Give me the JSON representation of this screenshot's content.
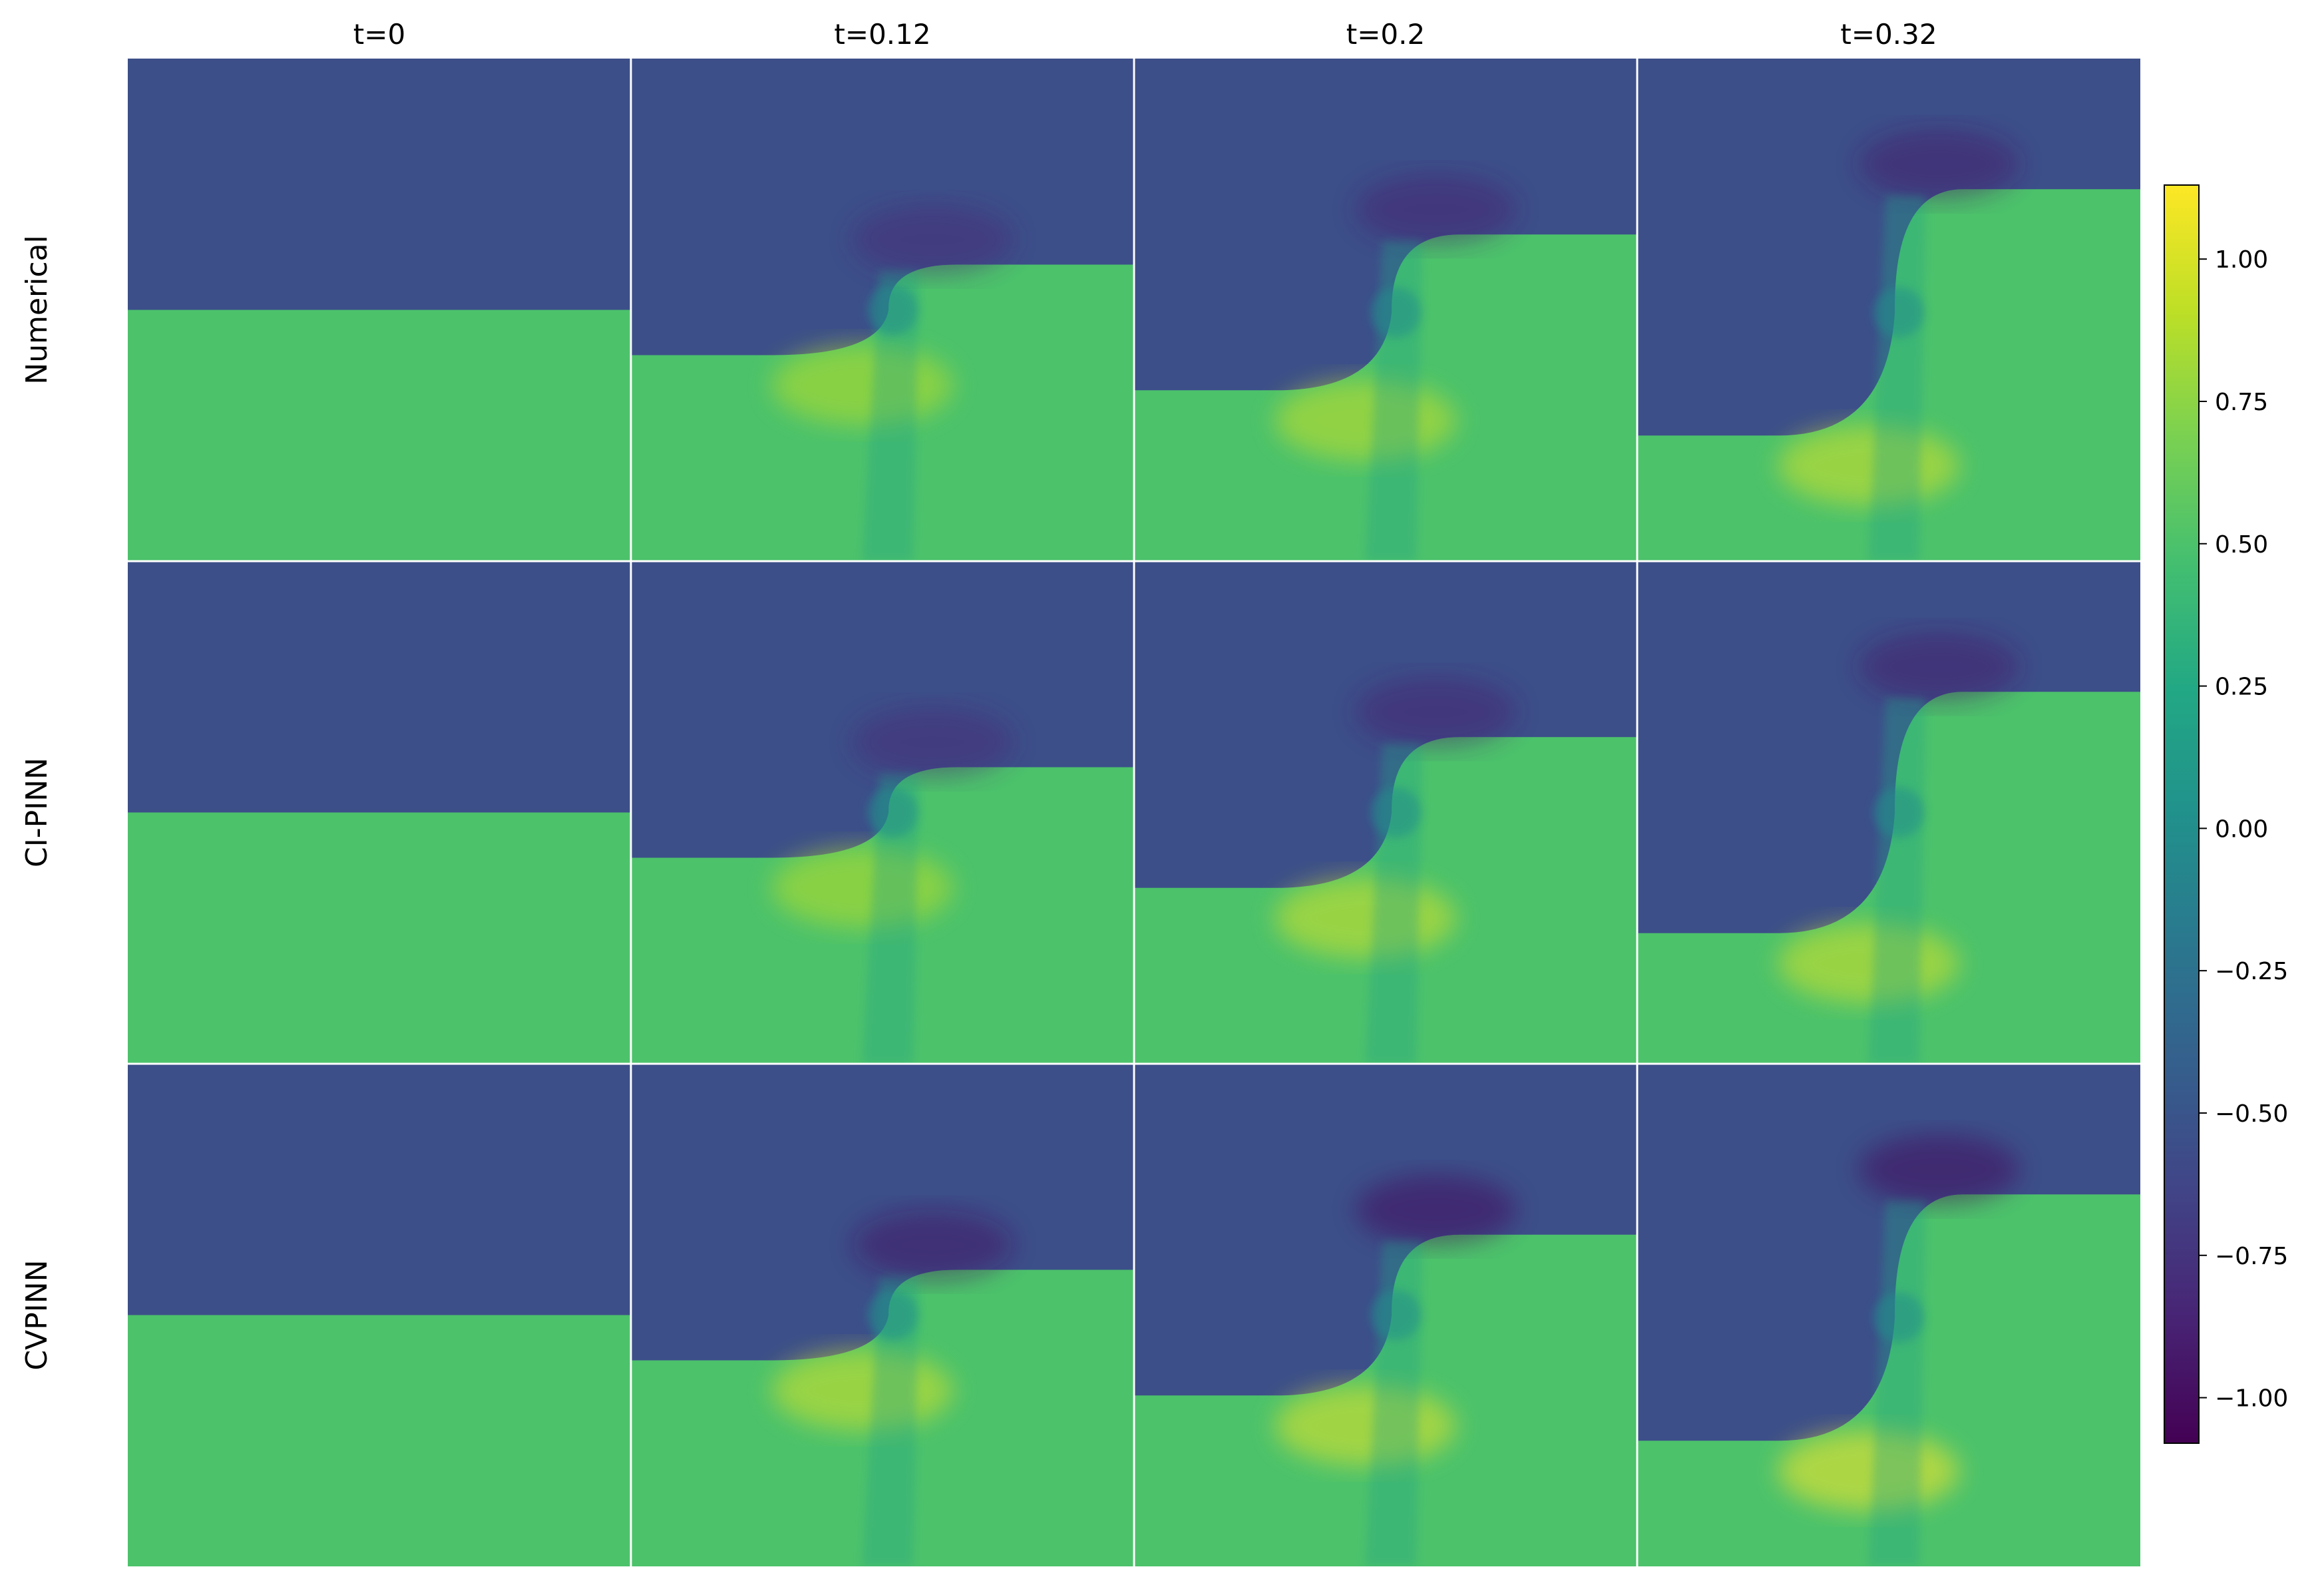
{
  "chart_data": {
    "type": "heatmap",
    "title": "",
    "columns": [
      "t=0",
      "t=0.12",
      "t=0.2",
      "t=0.32"
    ],
    "rows": [
      "Numerical",
      "CI-PINN",
      "CVPINN"
    ],
    "x_ticks_shown": false,
    "y_ticks_shown": false,
    "colormap": "viridis",
    "colorbar": {
      "vmin": -1.08,
      "vmax": 1.13,
      "ticks": [
        -1.0,
        -0.75,
        -0.5,
        -0.25,
        0.0,
        0.25,
        0.5,
        0.75,
        1.0
      ],
      "tick_labels": [
        "−1.00",
        "−0.75",
        "−0.50",
        "−0.25",
        "0.00",
        "0.25",
        "0.50",
        "0.75",
        "1.00"
      ],
      "placement": "right"
    },
    "field_levels": {
      "upper_region": -0.55,
      "lower_region": 0.5,
      "peak_overshoot": 1.1,
      "trough_undershoot": -1.0
    },
    "panels": [
      [
        {
          "left_interface_y": 0.5,
          "right_interface_y": 0.5,
          "kink_x": 0.5,
          "max": 0.5,
          "min": -0.55
        },
        {
          "left_interface_y": 0.41,
          "right_interface_y": 0.59,
          "kink_x": 0.52,
          "max": 0.9,
          "min": -0.85
        },
        {
          "left_interface_y": 0.34,
          "right_interface_y": 0.65,
          "kink_x": 0.52,
          "max": 0.95,
          "min": -0.9
        },
        {
          "left_interface_y": 0.25,
          "right_interface_y": 0.74,
          "kink_x": 0.52,
          "max": 1.0,
          "min": -0.95
        }
      ],
      [
        {
          "left_interface_y": 0.5,
          "right_interface_y": 0.5,
          "kink_x": 0.5,
          "max": 0.5,
          "min": -0.55
        },
        {
          "left_interface_y": 0.41,
          "right_interface_y": 0.59,
          "kink_x": 0.52,
          "max": 0.9,
          "min": -0.85
        },
        {
          "left_interface_y": 0.35,
          "right_interface_y": 0.65,
          "kink_x": 0.52,
          "max": 1.0,
          "min": -0.9
        },
        {
          "left_interface_y": 0.26,
          "right_interface_y": 0.74,
          "kink_x": 0.52,
          "max": 1.0,
          "min": -0.95
        }
      ],
      [
        {
          "left_interface_y": 0.5,
          "right_interface_y": 0.5,
          "kink_x": 0.5,
          "max": 0.6,
          "min": -0.7
        },
        {
          "left_interface_y": 0.41,
          "right_interface_y": 0.59,
          "kink_x": 0.52,
          "max": 1.0,
          "min": -1.0
        },
        {
          "left_interface_y": 0.34,
          "right_interface_y": 0.66,
          "kink_x": 0.52,
          "max": 1.05,
          "min": -1.05
        },
        {
          "left_interface_y": 0.25,
          "right_interface_y": 0.74,
          "kink_x": 0.52,
          "max": 1.13,
          "min": -1.08
        }
      ]
    ]
  }
}
